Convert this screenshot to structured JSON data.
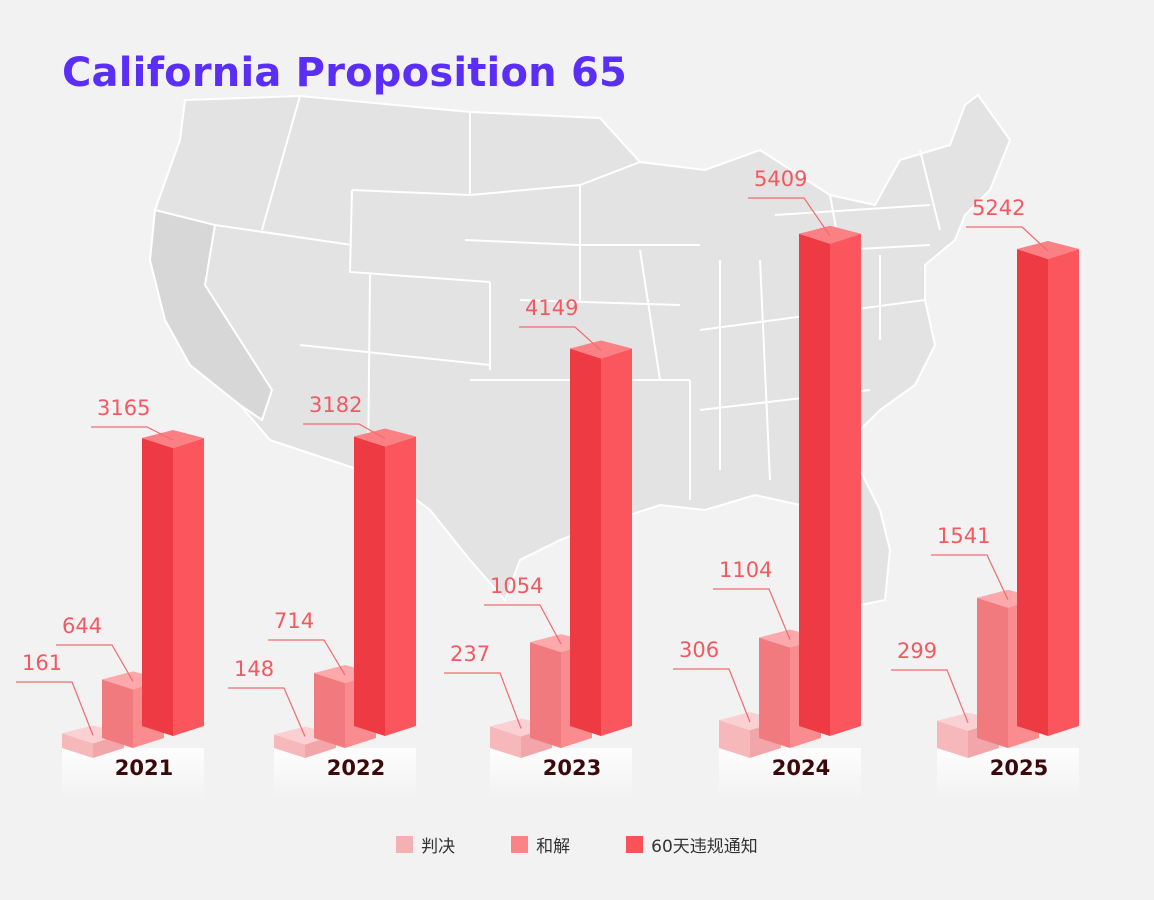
{
  "title": "California Proposition 65",
  "colors": {
    "judgment": "#f5b0b4",
    "settlement": "#fa8386",
    "notice": "#fb515b",
    "title": "#5b2ef5",
    "label": "#f05a60",
    "year": "#3a0a0a"
  },
  "chart_data": {
    "type": "bar",
    "title": "California Proposition 65",
    "categories": [
      "2021",
      "2022",
      "2023",
      "2024",
      "2025"
    ],
    "series": [
      {
        "name": "判决",
        "values": [
          161,
          148,
          237,
          306,
          299
        ]
      },
      {
        "name": "和解",
        "values": [
          644,
          714,
          1054,
          1104,
          1541
        ]
      },
      {
        "name": "60天违规通知",
        "values": [
          3165,
          3182,
          4149,
          5409,
          5242
        ]
      }
    ],
    "xlabel": "",
    "ylabel": "",
    "ylim": [
      0,
      5409
    ],
    "legend": "bottom-center",
    "grid": false
  },
  "legend": {
    "items": [
      {
        "label": "判决",
        "color": "#f5b0b4"
      },
      {
        "label": "和解",
        "color": "#fa8386"
      },
      {
        "label": "60天违规通知",
        "color": "#fb515b"
      }
    ]
  }
}
